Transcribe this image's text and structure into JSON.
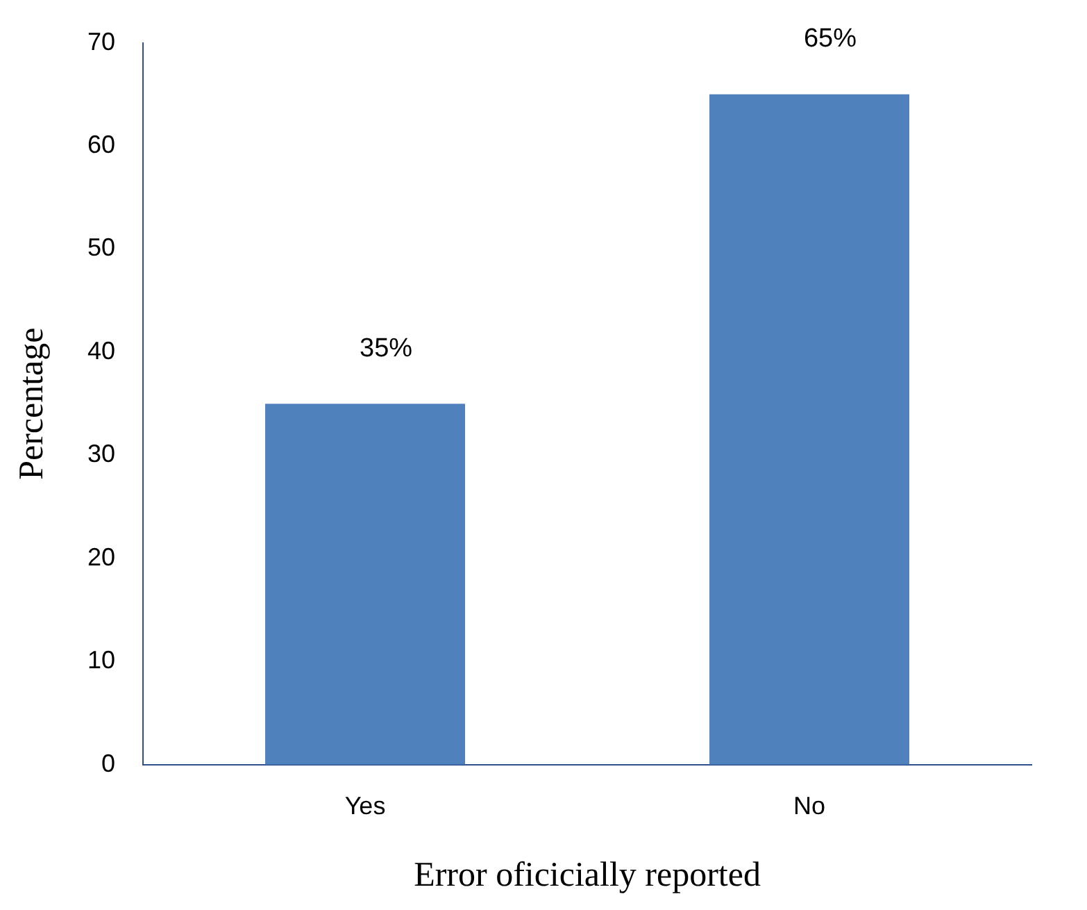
{
  "chart_data": {
    "type": "bar",
    "xlabel": "Error oficicially reported",
    "ylabel": "Percentage",
    "categories": [
      "Yes",
      "No"
    ],
    "values": [
      35,
      65
    ],
    "color": "#4f81bd",
    "value_labels": [
      "35%",
      "65%"
    ],
    "ylim": [
      0,
      70
    ],
    "yticks": [
      0,
      10,
      20,
      30,
      40,
      50,
      60,
      70
    ],
    "grid": false,
    "legend": false
  }
}
